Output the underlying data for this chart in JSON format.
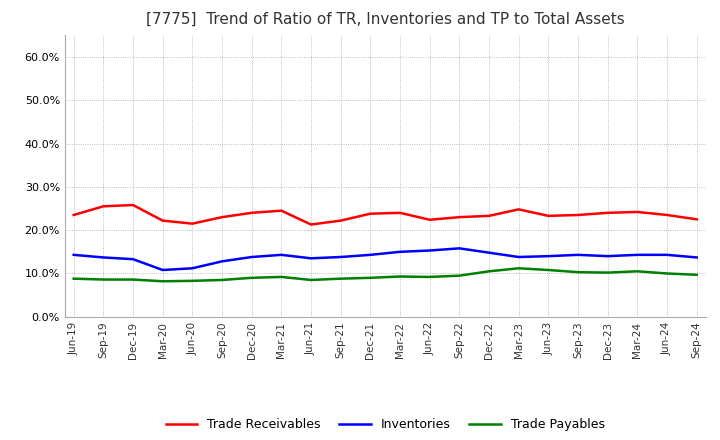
{
  "title": "[7775]  Trend of Ratio of TR, Inventories and TP to Total Assets",
  "x_labels": [
    "Jun-19",
    "Sep-19",
    "Dec-19",
    "Mar-20",
    "Jun-20",
    "Sep-20",
    "Dec-20",
    "Mar-21",
    "Jun-21",
    "Sep-21",
    "Dec-21",
    "Mar-22",
    "Jun-22",
    "Sep-22",
    "Dec-22",
    "Mar-23",
    "Jun-23",
    "Sep-23",
    "Dec-23",
    "Mar-24",
    "Jun-24",
    "Sep-24"
  ],
  "trade_receivables": [
    0.235,
    0.255,
    0.258,
    0.222,
    0.215,
    0.23,
    0.24,
    0.245,
    0.213,
    0.222,
    0.238,
    0.24,
    0.224,
    0.23,
    0.233,
    0.248,
    0.233,
    0.235,
    0.24,
    0.242,
    0.235,
    0.225
  ],
  "inventories": [
    0.143,
    0.137,
    0.133,
    0.108,
    0.112,
    0.128,
    0.138,
    0.143,
    0.135,
    0.138,
    0.143,
    0.15,
    0.153,
    0.158,
    0.148,
    0.138,
    0.14,
    0.143,
    0.14,
    0.143,
    0.143,
    0.137
  ],
  "trade_payables": [
    0.088,
    0.086,
    0.086,
    0.082,
    0.083,
    0.085,
    0.09,
    0.092,
    0.085,
    0.088,
    0.09,
    0.093,
    0.092,
    0.095,
    0.105,
    0.112,
    0.108,
    0.103,
    0.102,
    0.105,
    0.1,
    0.097
  ],
  "tr_color": "#FF0000",
  "inv_color": "#0000FF",
  "tp_color": "#008000",
  "ylim": [
    0.0,
    0.65
  ],
  "yticks": [
    0.0,
    0.1,
    0.2,
    0.3,
    0.4,
    0.5,
    0.6
  ],
  "background_color": "#FFFFFF",
  "grid_color": "#AAAAAA",
  "title_fontsize": 11,
  "legend_labels": [
    "Trade Receivables",
    "Inventories",
    "Trade Payables"
  ]
}
